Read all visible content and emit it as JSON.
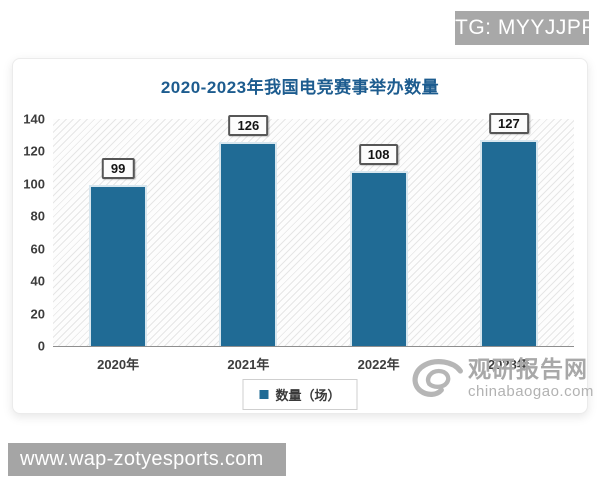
{
  "badge": {
    "label": "TG: MYYJJPP"
  },
  "chart_data": {
    "type": "bar",
    "title": "2020-2023年我国电竞赛事举办数量",
    "categories": [
      "2020年",
      "2021年",
      "2022年",
      "2023年"
    ],
    "values": [
      99,
      126,
      108,
      127
    ],
    "series_name": "数量（场）",
    "legend": [
      "数量（场）"
    ],
    "legend_position": "bottom-center",
    "xlabel": "",
    "ylabel": "",
    "ylim": [
      0,
      140
    ],
    "ytick_step": 20,
    "grid": false,
    "plot_background": "diagonal-hatch",
    "bar_color": "#206b95",
    "bar_edge_color": "#d8e7ef",
    "title_color": "#1d5c8f"
  },
  "watermark": {
    "logo": "swirl-logo-icon",
    "name": "观研报告网",
    "domain": "chinabaogao.com",
    "color": "#b5b5b5"
  },
  "footer": {
    "url": "www.wap-zotyesports.com"
  }
}
